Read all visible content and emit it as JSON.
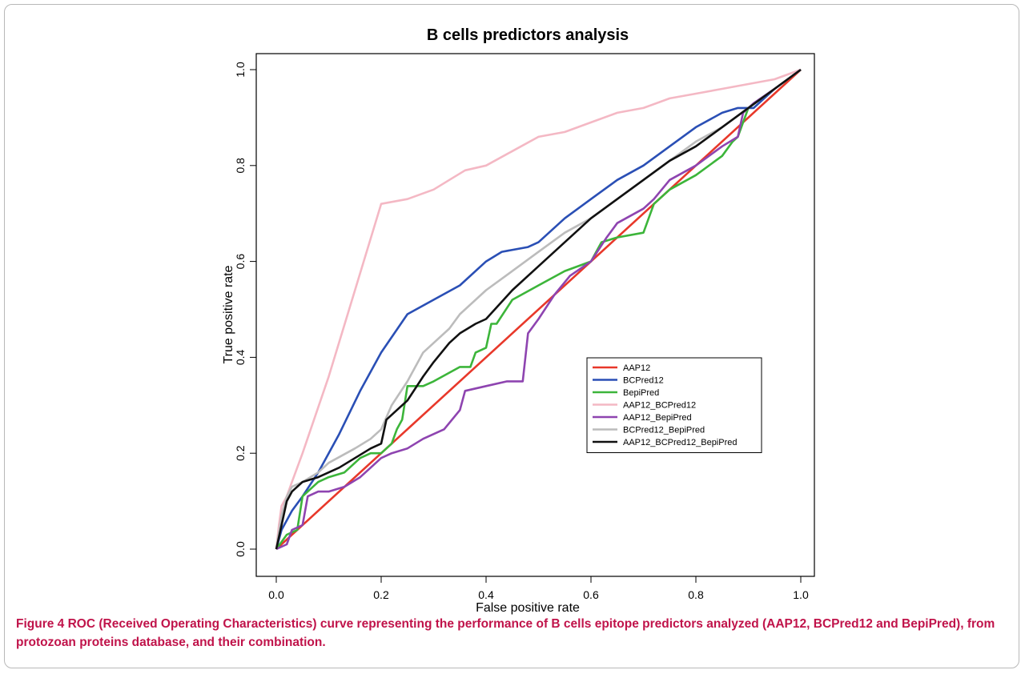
{
  "caption": {
    "figure_label": "Figure 4",
    "text": " ROC (Received Operating Characteristics) curve representing the performance of B cells epitope predictors analyzed (AAP12, BCPred12 and BepiPred), from protozoan proteins database, and their combination."
  },
  "chart_data": {
    "type": "line",
    "title": "B cells predictors analysis",
    "xlabel": "False positive rate",
    "ylabel": "True positive rate",
    "xlim": [
      0,
      1
    ],
    "ylim": [
      0,
      1
    ],
    "xticks": [
      "0.0",
      "0.2",
      "0.4",
      "0.6",
      "0.8",
      "1.0"
    ],
    "yticks": [
      "0.0",
      "0.2",
      "0.4",
      "0.6",
      "0.8",
      "1.0"
    ],
    "grid": false,
    "legend_position": "center-right",
    "series": [
      {
        "name": "AAP12",
        "color": "#e8382a",
        "x": [
          0,
          1
        ],
        "y": [
          0,
          1
        ]
      },
      {
        "name": "BCPred12",
        "color": "#2a4fb5",
        "x": [
          0,
          0.01,
          0.03,
          0.05,
          0.08,
          0.12,
          0.16,
          0.2,
          0.25,
          0.3,
          0.35,
          0.4,
          0.43,
          0.48,
          0.5,
          0.55,
          0.6,
          0.65,
          0.7,
          0.75,
          0.8,
          0.85,
          0.88,
          0.91,
          0.95,
          1.0
        ],
        "y": [
          0,
          0.04,
          0.08,
          0.11,
          0.16,
          0.24,
          0.33,
          0.41,
          0.49,
          0.52,
          0.55,
          0.6,
          0.62,
          0.63,
          0.64,
          0.69,
          0.73,
          0.77,
          0.8,
          0.84,
          0.88,
          0.91,
          0.92,
          0.92,
          0.96,
          1.0
        ]
      },
      {
        "name": "BepiPred",
        "color": "#3cb53a",
        "x": [
          0,
          0.02,
          0.04,
          0.05,
          0.06,
          0.08,
          0.1,
          0.13,
          0.16,
          0.18,
          0.2,
          0.22,
          0.23,
          0.24,
          0.25,
          0.28,
          0.3,
          0.35,
          0.37,
          0.38,
          0.4,
          0.41,
          0.42,
          0.45,
          0.5,
          0.55,
          0.6,
          0.62,
          0.65,
          0.7,
          0.72,
          0.75,
          0.8,
          0.85,
          0.87,
          0.88,
          0.9,
          0.95,
          1.0
        ],
        "y": [
          0,
          0.03,
          0.04,
          0.11,
          0.12,
          0.14,
          0.15,
          0.16,
          0.19,
          0.2,
          0.2,
          0.22,
          0.25,
          0.27,
          0.34,
          0.34,
          0.35,
          0.38,
          0.38,
          0.41,
          0.42,
          0.47,
          0.47,
          0.52,
          0.55,
          0.58,
          0.6,
          0.64,
          0.65,
          0.66,
          0.72,
          0.75,
          0.78,
          0.82,
          0.85,
          0.86,
          0.92,
          0.96,
          1.0
        ]
      },
      {
        "name": "AAP12_BCPred12",
        "color": "#f4b8c4",
        "x": [
          0,
          0.005,
          0.01,
          0.02,
          0.03,
          0.05,
          0.1,
          0.15,
          0.2,
          0.25,
          0.3,
          0.33,
          0.36,
          0.4,
          0.45,
          0.5,
          0.55,
          0.6,
          0.65,
          0.7,
          0.75,
          0.8,
          0.85,
          0.9,
          0.95,
          1.0
        ],
        "y": [
          0,
          0.05,
          0.09,
          0.11,
          0.14,
          0.2,
          0.36,
          0.54,
          0.72,
          0.73,
          0.75,
          0.77,
          0.79,
          0.8,
          0.83,
          0.86,
          0.87,
          0.89,
          0.91,
          0.92,
          0.94,
          0.95,
          0.96,
          0.97,
          0.98,
          1.0
        ]
      },
      {
        "name": "AAP12_BepiPred",
        "color": "#8e44b0",
        "x": [
          0,
          0.02,
          0.03,
          0.05,
          0.06,
          0.08,
          0.1,
          0.13,
          0.16,
          0.18,
          0.2,
          0.22,
          0.25,
          0.28,
          0.32,
          0.35,
          0.36,
          0.4,
          0.44,
          0.47,
          0.48,
          0.5,
          0.53,
          0.56,
          0.6,
          0.63,
          0.65,
          0.7,
          0.72,
          0.75,
          0.8,
          0.85,
          0.88,
          0.89,
          0.91,
          0.95,
          1.0
        ],
        "y": [
          0,
          0.01,
          0.04,
          0.05,
          0.11,
          0.12,
          0.12,
          0.13,
          0.15,
          0.17,
          0.19,
          0.2,
          0.21,
          0.23,
          0.25,
          0.29,
          0.33,
          0.34,
          0.35,
          0.35,
          0.45,
          0.48,
          0.53,
          0.57,
          0.6,
          0.65,
          0.68,
          0.71,
          0.73,
          0.77,
          0.8,
          0.84,
          0.86,
          0.91,
          0.93,
          0.96,
          1.0
        ]
      },
      {
        "name": "BCPred12_BepiPred",
        "color": "#bcbcbc",
        "x": [
          0,
          0.01,
          0.02,
          0.03,
          0.05,
          0.08,
          0.1,
          0.15,
          0.18,
          0.2,
          0.22,
          0.25,
          0.28,
          0.3,
          0.33,
          0.35,
          0.4,
          0.45,
          0.5,
          0.55,
          0.6,
          0.65,
          0.7,
          0.75,
          0.8,
          0.85,
          0.9,
          0.95,
          1.0
        ],
        "y": [
          0,
          0.07,
          0.11,
          0.13,
          0.14,
          0.16,
          0.18,
          0.21,
          0.23,
          0.25,
          0.3,
          0.35,
          0.41,
          0.43,
          0.46,
          0.49,
          0.54,
          0.58,
          0.62,
          0.66,
          0.69,
          0.73,
          0.77,
          0.81,
          0.85,
          0.88,
          0.92,
          0.96,
          1.0
        ]
      },
      {
        "name": "AAP12_BCPred12_BepiPred",
        "color": "#111111",
        "x": [
          0,
          0.01,
          0.02,
          0.03,
          0.05,
          0.08,
          0.12,
          0.15,
          0.18,
          0.2,
          0.21,
          0.23,
          0.25,
          0.28,
          0.3,
          0.33,
          0.35,
          0.38,
          0.4,
          0.45,
          0.5,
          0.55,
          0.6,
          0.65,
          0.7,
          0.75,
          0.8,
          0.85,
          0.9,
          0.95,
          1.0
        ],
        "y": [
          0,
          0.05,
          0.1,
          0.12,
          0.14,
          0.15,
          0.17,
          0.19,
          0.21,
          0.22,
          0.27,
          0.29,
          0.31,
          0.36,
          0.39,
          0.43,
          0.45,
          0.47,
          0.48,
          0.54,
          0.59,
          0.64,
          0.69,
          0.73,
          0.77,
          0.81,
          0.84,
          0.88,
          0.92,
          0.96,
          1.0
        ]
      }
    ]
  }
}
